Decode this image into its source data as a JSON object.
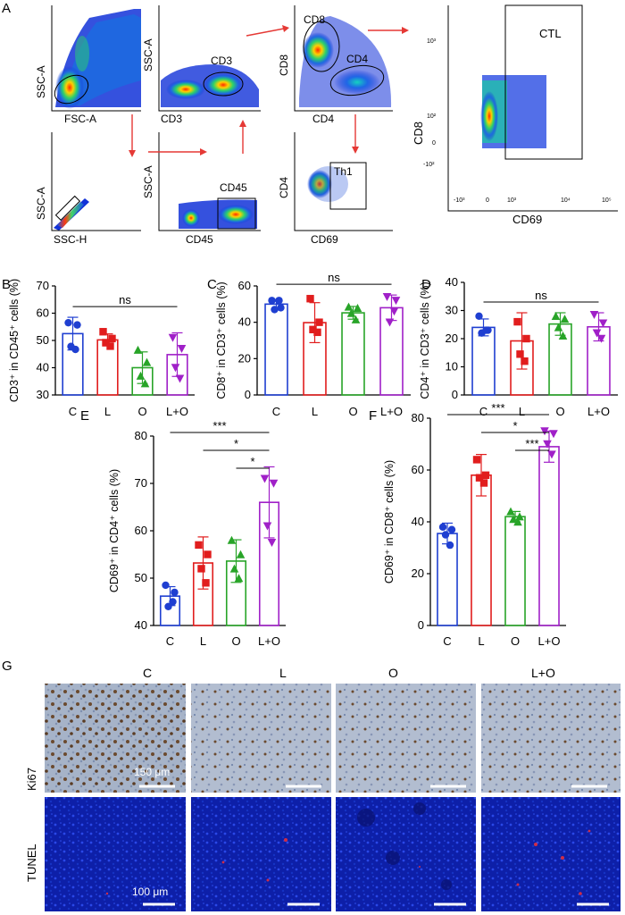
{
  "panel_labels": {
    "A": "A",
    "B": "B",
    "C": "C",
    "D": "D",
    "E": "E",
    "F": "F",
    "G": "G"
  },
  "colors": {
    "C": "#1f3fd1",
    "L": "#e11d1d",
    "O": "#28a428",
    "LO": "#a020c8",
    "arrow": "#e53935",
    "ns_line": "#000000"
  },
  "flow": {
    "p1": {
      "xlabel": "FSC-A",
      "ylabel": "SSC-A"
    },
    "p2": {
      "xlabel": "CD3",
      "ylabel": "SSC-A",
      "gate": "CD3"
    },
    "p3": {
      "xlabel": "CD4",
      "ylabel": "CD8",
      "gate1": "CD8",
      "gate2": "CD4"
    },
    "p4": {
      "xlabel": "SSC-H",
      "ylabel": "SSC-A"
    },
    "p5": {
      "xlabel": "CD45",
      "ylabel": "SSC-A",
      "gate": "CD45"
    },
    "p6": {
      "xlabel": "CD69",
      "ylabel": "CD4",
      "gate": "Th1"
    },
    "p7": {
      "xlabel": "CD69",
      "ylabel": "CD8",
      "gate": "CTL",
      "yticks": [
        "10³",
        "10²",
        "0",
        "-10²"
      ],
      "xticks": [
        "-10³",
        "0",
        "10³",
        "10⁴",
        "10⁵"
      ]
    }
  },
  "chart_data": [
    {
      "id": "B",
      "type": "bar",
      "categories": [
        "C",
        "L",
        "O",
        "L+O"
      ],
      "values": [
        52.5,
        50.2,
        40,
        44.8
      ],
      "errors": [
        6,
        2.2,
        5.8,
        8
      ],
      "points": [
        [
          56.5,
          55.7,
          47.8,
          46.7
        ],
        [
          53.2,
          50.7,
          49.2,
          47.9
        ],
        [
          46.5,
          42,
          37,
          34.2
        ],
        [
          51,
          47,
          40,
          36
        ]
      ],
      "ylabel": "CD3⁺ in CD45⁺ cells (%)",
      "ylim": [
        30,
        70
      ],
      "yticks": [
        "30",
        "40",
        "50",
        "60",
        "70"
      ],
      "sig": [
        {
          "from": 0,
          "to": 3,
          "label": "ns"
        }
      ]
    },
    {
      "id": "C",
      "type": "bar",
      "categories": [
        "C",
        "L",
        "O",
        "L+O"
      ],
      "values": [
        50,
        39.8,
        45.2,
        48
      ],
      "errors": [
        2.5,
        11,
        3.5,
        7
      ],
      "points": [
        [
          52,
          48,
          47,
          52
        ],
        [
          53,
          40,
          36,
          34.5
        ],
        [
          48.5,
          47.8,
          45,
          41.5
        ],
        [
          54,
          52,
          40,
          46
        ]
      ],
      "ylabel": "CD8⁺ in CD3⁺ cells (%)",
      "ylim": [
        0,
        60
      ],
      "yticks": [
        "0",
        "20",
        "40",
        "60"
      ],
      "sig": [
        {
          "from": 0,
          "to": 3,
          "label": "ns"
        }
      ]
    },
    {
      "id": "D",
      "type": "bar",
      "categories": [
        "C",
        "L",
        "O",
        "L+O"
      ],
      "values": [
        24,
        19.2,
        25.2,
        24.2
      ],
      "errors": [
        3,
        10,
        4,
        5
      ],
      "points": [
        [
          28,
          23,
          22,
          23
        ],
        [
          26,
          20,
          14.5,
          12
        ],
        [
          28,
          27,
          24,
          21
        ],
        [
          28.5,
          25.5,
          22,
          20
        ]
      ],
      "ylabel": "CD4⁺ in CD3⁺ cells (%)",
      "ylim": [
        0,
        40
      ],
      "yticks": [
        "0",
        "10",
        "20",
        "30",
        "40"
      ],
      "sig": [
        {
          "from": 0,
          "to": 3,
          "label": "ns"
        }
      ]
    },
    {
      "id": "E",
      "type": "bar",
      "categories": [
        "C",
        "L",
        "O",
        "L+O"
      ],
      "values": [
        46.2,
        53.2,
        53.6,
        66
      ],
      "errors": [
        2,
        5.5,
        4.5,
        7.5
      ],
      "points": [
        [
          48.5,
          47,
          44,
          45
        ],
        [
          57,
          55,
          52,
          49
        ],
        [
          58,
          55,
          52,
          50
        ],
        [
          71,
          70,
          61,
          57.5
        ]
      ],
      "ylabel": "CD69⁺ in CD4⁺ cells (%)",
      "ylim": [
        40,
        80
      ],
      "yticks": [
        "40",
        "50",
        "60",
        "70",
        "80"
      ],
      "sig": [
        {
          "from": 0,
          "to": 3,
          "label": "***"
        },
        {
          "from": 1,
          "to": 3,
          "label": "*"
        },
        {
          "from": 2,
          "to": 3,
          "label": "*"
        }
      ]
    },
    {
      "id": "F",
      "type": "bar",
      "categories": [
        "C",
        "L",
        "O",
        "L+O"
      ],
      "values": [
        35.5,
        58,
        42,
        69
      ],
      "errors": [
        4,
        8,
        2,
        6
      ],
      "points": [
        [
          38,
          37,
          35,
          31
        ],
        [
          64,
          58,
          57,
          55
        ],
        [
          44,
          42,
          41,
          40
        ],
        [
          75,
          74,
          70,
          66
        ]
      ],
      "ylabel": "CD69⁺ in CD8⁺ cells (%)",
      "ylim": [
        0,
        80
      ],
      "yticks": [
        "0",
        "20",
        "40",
        "60",
        "80"
      ],
      "sig": [
        {
          "from": 0,
          "to": 3,
          "label": "***"
        },
        {
          "from": 1,
          "to": 3,
          "label": "*"
        },
        {
          "from": 2,
          "to": 3,
          "label": "***"
        }
      ]
    }
  ],
  "micro": {
    "columns": [
      "C",
      "L",
      "O",
      "L+O"
    ],
    "rows": [
      "Ki67",
      "TUNEL"
    ],
    "scale_ki67": "150 μm",
    "scale_tunel": "100 μm"
  }
}
